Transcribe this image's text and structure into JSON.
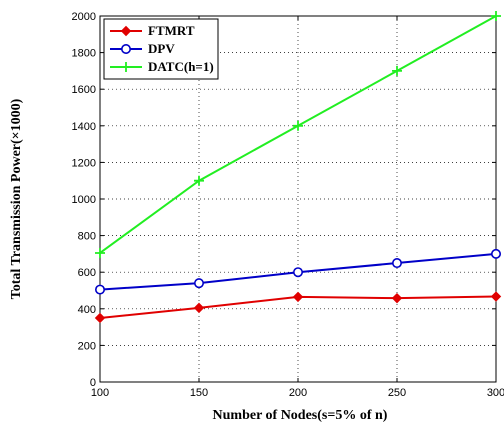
{
  "chart_data": {
    "type": "line",
    "xlabel": "Number of Nodes(s=5% of n)",
    "ylabel": "Total Transmission Power(×1000)",
    "x": [
      100,
      150,
      200,
      250,
      300
    ],
    "xlim": [
      100,
      300
    ],
    "ylim": [
      0,
      2000
    ],
    "xticks": [
      100,
      150,
      200,
      250,
      300
    ],
    "yticks": [
      0,
      200,
      400,
      600,
      800,
      1000,
      1200,
      1400,
      1600,
      1800,
      2000
    ],
    "grid": true,
    "legend_position": "top-left",
    "series": [
      {
        "name": "FTMRT",
        "values": [
          350,
          405,
          465,
          458,
          467
        ],
        "color": "#e00000",
        "marker": "diamond"
      },
      {
        "name": "DPV",
        "values": [
          505,
          540,
          600,
          650,
          700
        ],
        "color": "#0000c8",
        "marker": "circle"
      },
      {
        "name": "DATC(h=1)",
        "values": [
          705,
          1100,
          1400,
          1700,
          2000
        ],
        "color": "#22ee22",
        "marker": "plus"
      }
    ]
  }
}
